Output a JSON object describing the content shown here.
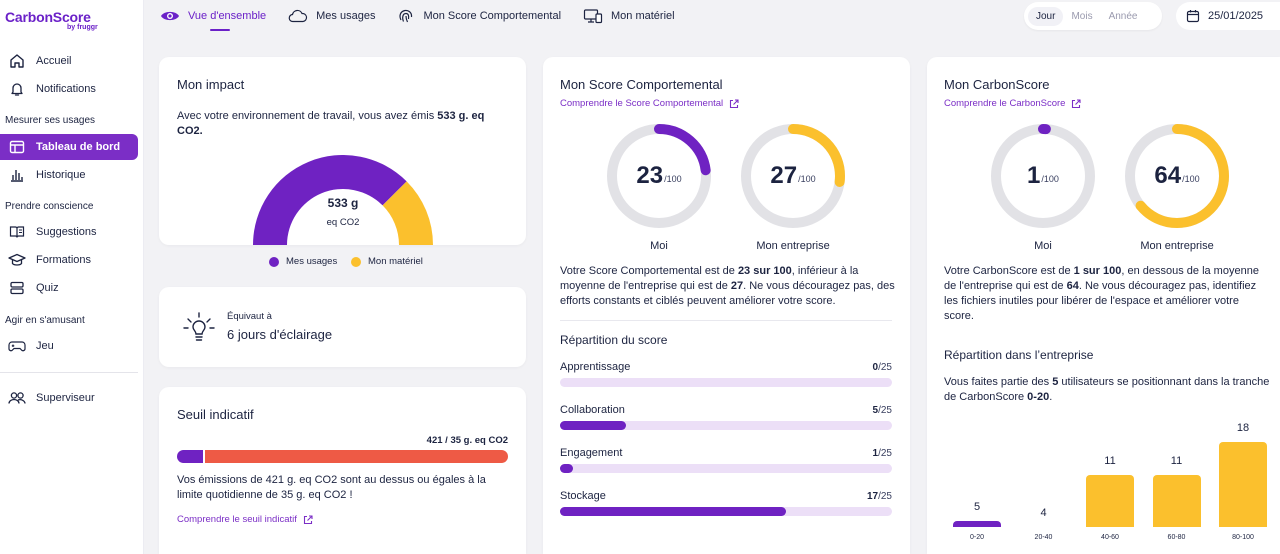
{
  "brand": {
    "name": "CarbonScore",
    "by": "by fruggr"
  },
  "sidebar": {
    "items_top": [
      {
        "label": "Accueil",
        "icon": "home-icon"
      },
      {
        "label": "Notifications",
        "icon": "bell-icon"
      }
    ],
    "section_measure": "Mesurer ses usages",
    "measure_items": [
      {
        "label": "Tableau de bord",
        "icon": "dashboard-icon"
      },
      {
        "label": "Historique",
        "icon": "bar-chart-icon"
      }
    ],
    "section_aware": "Prendre conscience",
    "aware_items": [
      {
        "label": "Suggestions",
        "icon": "book-icon"
      },
      {
        "label": "Formations",
        "icon": "graduation-cap-icon"
      },
      {
        "label": "Quiz",
        "icon": "quiz-icon"
      }
    ],
    "section_fun": "Agir en s'amusant",
    "fun_items": [
      {
        "label": "Jeu",
        "icon": "gamepad-icon"
      }
    ],
    "bottom_items": [
      {
        "label": "Superviseur",
        "icon": "users-icon"
      }
    ]
  },
  "topnav": {
    "tabs": [
      {
        "label": "Vue d'ensemble",
        "icon": "eye-icon",
        "active": true
      },
      {
        "label": "Mes usages",
        "icon": "cloud-icon"
      },
      {
        "label": "Mon Score Comportemental",
        "icon": "fingerprint-icon"
      },
      {
        "label": "Mon matériel",
        "icon": "devices-icon"
      }
    ],
    "periods": [
      "Jour",
      "Mois",
      "Année"
    ],
    "selected_period": "Jour",
    "date": "25/01/2025"
  },
  "impact": {
    "title": "Mon impact",
    "text_before": "Avec votre environnement de travail, vous avez émis ",
    "text_bold": "533 g. eq CO2.",
    "gauge_value": "533 g",
    "gauge_unit": "eq CO2",
    "legend_usages": "Mes usages",
    "legend_materiel": "Mon matériel",
    "share_usages_percent": 75
  },
  "equivalent": {
    "label": "Équivaut à",
    "value": "6 jours d'éclairage"
  },
  "threshold": {
    "title": "Seuil indicatif",
    "value_label": "421 / 35 g. eq CO2",
    "threshold_value": 35,
    "emission_value": 421,
    "text": "Vos émissions de 421 g. eq CO2 sont au dessus ou égales à la limite quotidienne de 35 g. eq CO2 !",
    "link": "Comprendre le seuil indicatif"
  },
  "behavior": {
    "title": "Mon Score Comportemental",
    "link": "Comprendre le Score Comportemental",
    "me_score": "23",
    "me_den": "/100",
    "me_label": "Moi",
    "company_score": "27",
    "company_den": "/100",
    "company_label": "Mon entreprise",
    "desc_p1": "Votre Score Comportemental est de ",
    "desc_b1": "23 sur 100",
    "desc_p2": ", inférieur à la moyenne de l'entreprise qui est de ",
    "desc_b2": "27",
    "desc_p3": ". Ne vous découragez pas, des efforts constants et ciblés peuvent améliorer votre score.",
    "breakdown_title": "Répartition du score",
    "breakdown": [
      {
        "label": "Apprentissage",
        "score": "0",
        "den": "/25",
        "value": 0
      },
      {
        "label": "Collaboration",
        "score": "5",
        "den": "/25",
        "value": 5
      },
      {
        "label": "Engagement",
        "score": "1",
        "den": "/25",
        "value": 1
      },
      {
        "label": "Stockage",
        "score": "17",
        "den": "/25",
        "value": 17
      }
    ]
  },
  "carbonscore": {
    "title": "Mon CarbonScore",
    "link": "Comprendre le CarbonScore",
    "me_score": "1",
    "me_den": "/100",
    "me_label": "Moi",
    "company_score": "64",
    "company_den": "/100",
    "company_label": "Mon entreprise",
    "desc_p1": "Votre CarbonScore est de ",
    "desc_b1": "1 sur 100",
    "desc_p2": ", en dessous de la moyenne de l'entreprise qui est de ",
    "desc_b2": "64",
    "desc_p3": ". Ne vous découragez pas, identifiez les fichiers inutiles pour libérer de l'espace et améliorer votre score.",
    "distribution_title": "Répartition dans l’entreprise",
    "dist_p1": "Vous faites partie des ",
    "dist_b1": "5",
    "dist_p2": " utilisateurs se positionnant dans la tranche de CarbonScore ",
    "dist_b2": "0-20",
    "dist_p3": "."
  },
  "chart_data": {
    "type": "bar",
    "title": "Répartition dans l’entreprise",
    "categories": [
      "0-20",
      "20-40",
      "40-60",
      "60-80",
      "80-100"
    ],
    "values": [
      5,
      4,
      11,
      11,
      18
    ],
    "highlight_category": "0-20",
    "xlabel": "",
    "ylabel": "",
    "ylim": [
      0,
      18
    ]
  },
  "colors": {
    "purple": "#6f22c2",
    "yellow": "#fbc02d",
    "red": "#ee5a45",
    "track": "#e2e2e6"
  }
}
